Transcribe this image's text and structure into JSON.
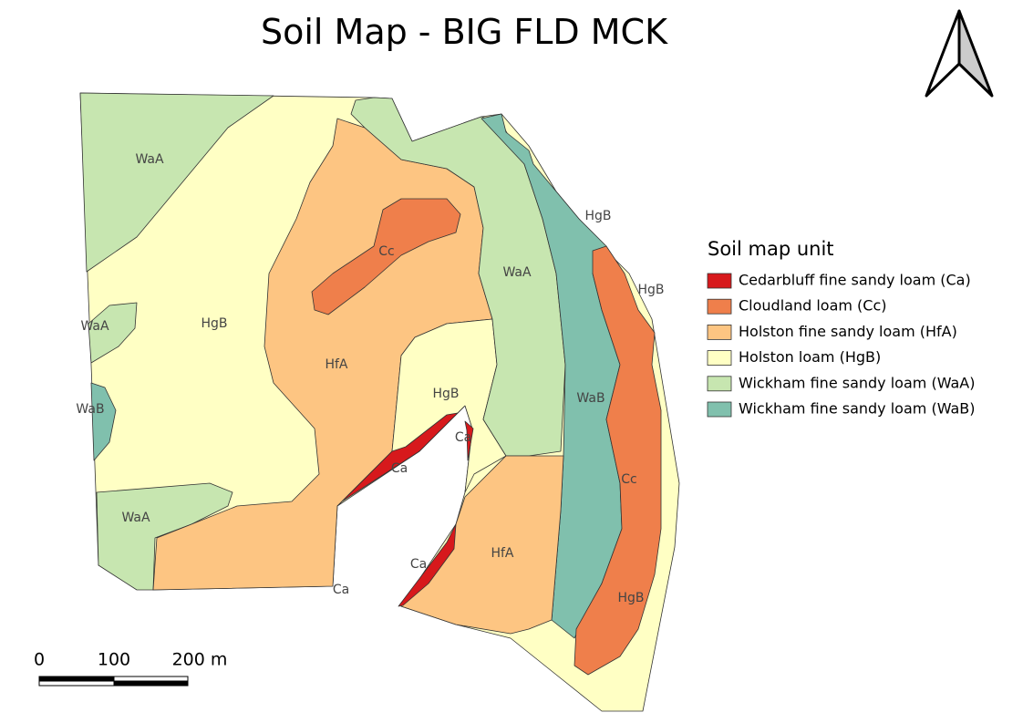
{
  "title": "Soil Map - BIG FLD MCK",
  "legend": {
    "title": "Soil map unit",
    "items": [
      {
        "label": "Cedarbluff fine sandy loam (Ca)",
        "color": "#d7191c"
      },
      {
        "label": "Cloudland loam (Cc)",
        "color": "#ef7f4b"
      },
      {
        "label": "Holston fine sandy loam (HfA)",
        "color": "#fdc582"
      },
      {
        "label": "Holston loam (HgB)",
        "color": "#ffffc4"
      },
      {
        "label": "Wickham fine sandy loam (WaA)",
        "color": "#c7e6b0"
      },
      {
        "label": "Wickham fine sandy loam (WaB)",
        "color": "#80c0ad"
      }
    ]
  },
  "map_labels": [
    "WaA",
    "HgB",
    "WaA",
    "WaB",
    "WaA",
    "Cc",
    "HfA",
    "WaA",
    "HgB",
    "Ca",
    "Ca",
    "Ca",
    "Ca",
    "HgB",
    "HgB",
    "WaB",
    "Cc",
    "HfA",
    "HgB"
  ],
  "scale_bar": {
    "labels": [
      "0",
      "100",
      "200 m"
    ]
  }
}
